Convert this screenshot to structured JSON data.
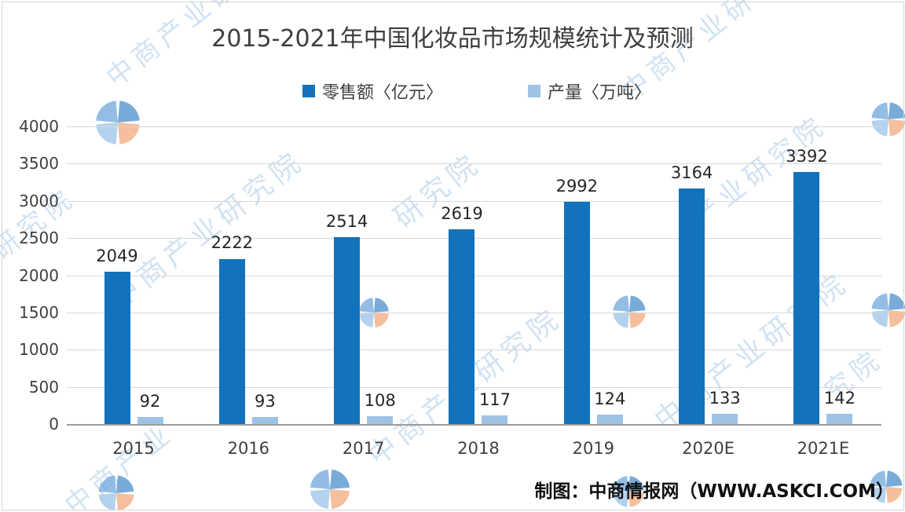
{
  "title": "2015-2021年中国化妆品市场规模统计及预测",
  "legend": [
    {
      "label": "零售额〈亿元〉",
      "color": "#1272BC"
    },
    {
      "label": "产量〈万吨〉",
      "color": "#9DC3E6"
    }
  ],
  "y_axis": {
    "ticks": [
      "4000",
      "3500",
      "3000",
      "2500",
      "2000",
      "1500",
      "1000",
      "500",
      "0"
    ]
  },
  "footer_credit": "制图：中商情报网（WWW.ASKCI.COM）",
  "watermark": {
    "text": "中商产业研究院",
    "color": "#accbe9",
    "strips": [
      "中商产业研究",
      "业研究院",
      "中商产业研究院",
      "中商产业研究院",
      "中商产业研",
      "中商产业研究院",
      "产业研究院",
      "研究院",
      "中商产业",
      "究院"
    ],
    "logo_colors": [
      "#4d8fcb",
      "#f2a97c",
      "#9cc3e8",
      "#6fa8dc"
    ]
  },
  "colors": {
    "bar_retail": "#1272BC",
    "bar_production": "#9DC3E6",
    "gridline": "#D8D8D8",
    "axis_line": "#9C9C9C"
  },
  "chart_data": {
    "type": "bar",
    "title": "2015-2021年中国化妆品市场规模统计及预测",
    "categories": [
      "2015",
      "2016",
      "2017",
      "2018",
      "2019",
      "2020E",
      "2021E"
    ],
    "series": [
      {
        "name": "零售额〈亿元〉",
        "color": "#1272BC",
        "values": [
          2049,
          2222,
          2514,
          2619,
          2992,
          3164,
          3392
        ]
      },
      {
        "name": "产量〈万吨〉",
        "color": "#9DC3E6",
        "values": [
          92,
          93,
          108,
          117,
          124,
          133,
          142
        ]
      }
    ],
    "xlabel": "",
    "ylabel": "",
    "ylim": [
      0,
      4000
    ],
    "ytick_interval": 500,
    "grid": true,
    "legend_position": "top",
    "value_labels": true
  }
}
